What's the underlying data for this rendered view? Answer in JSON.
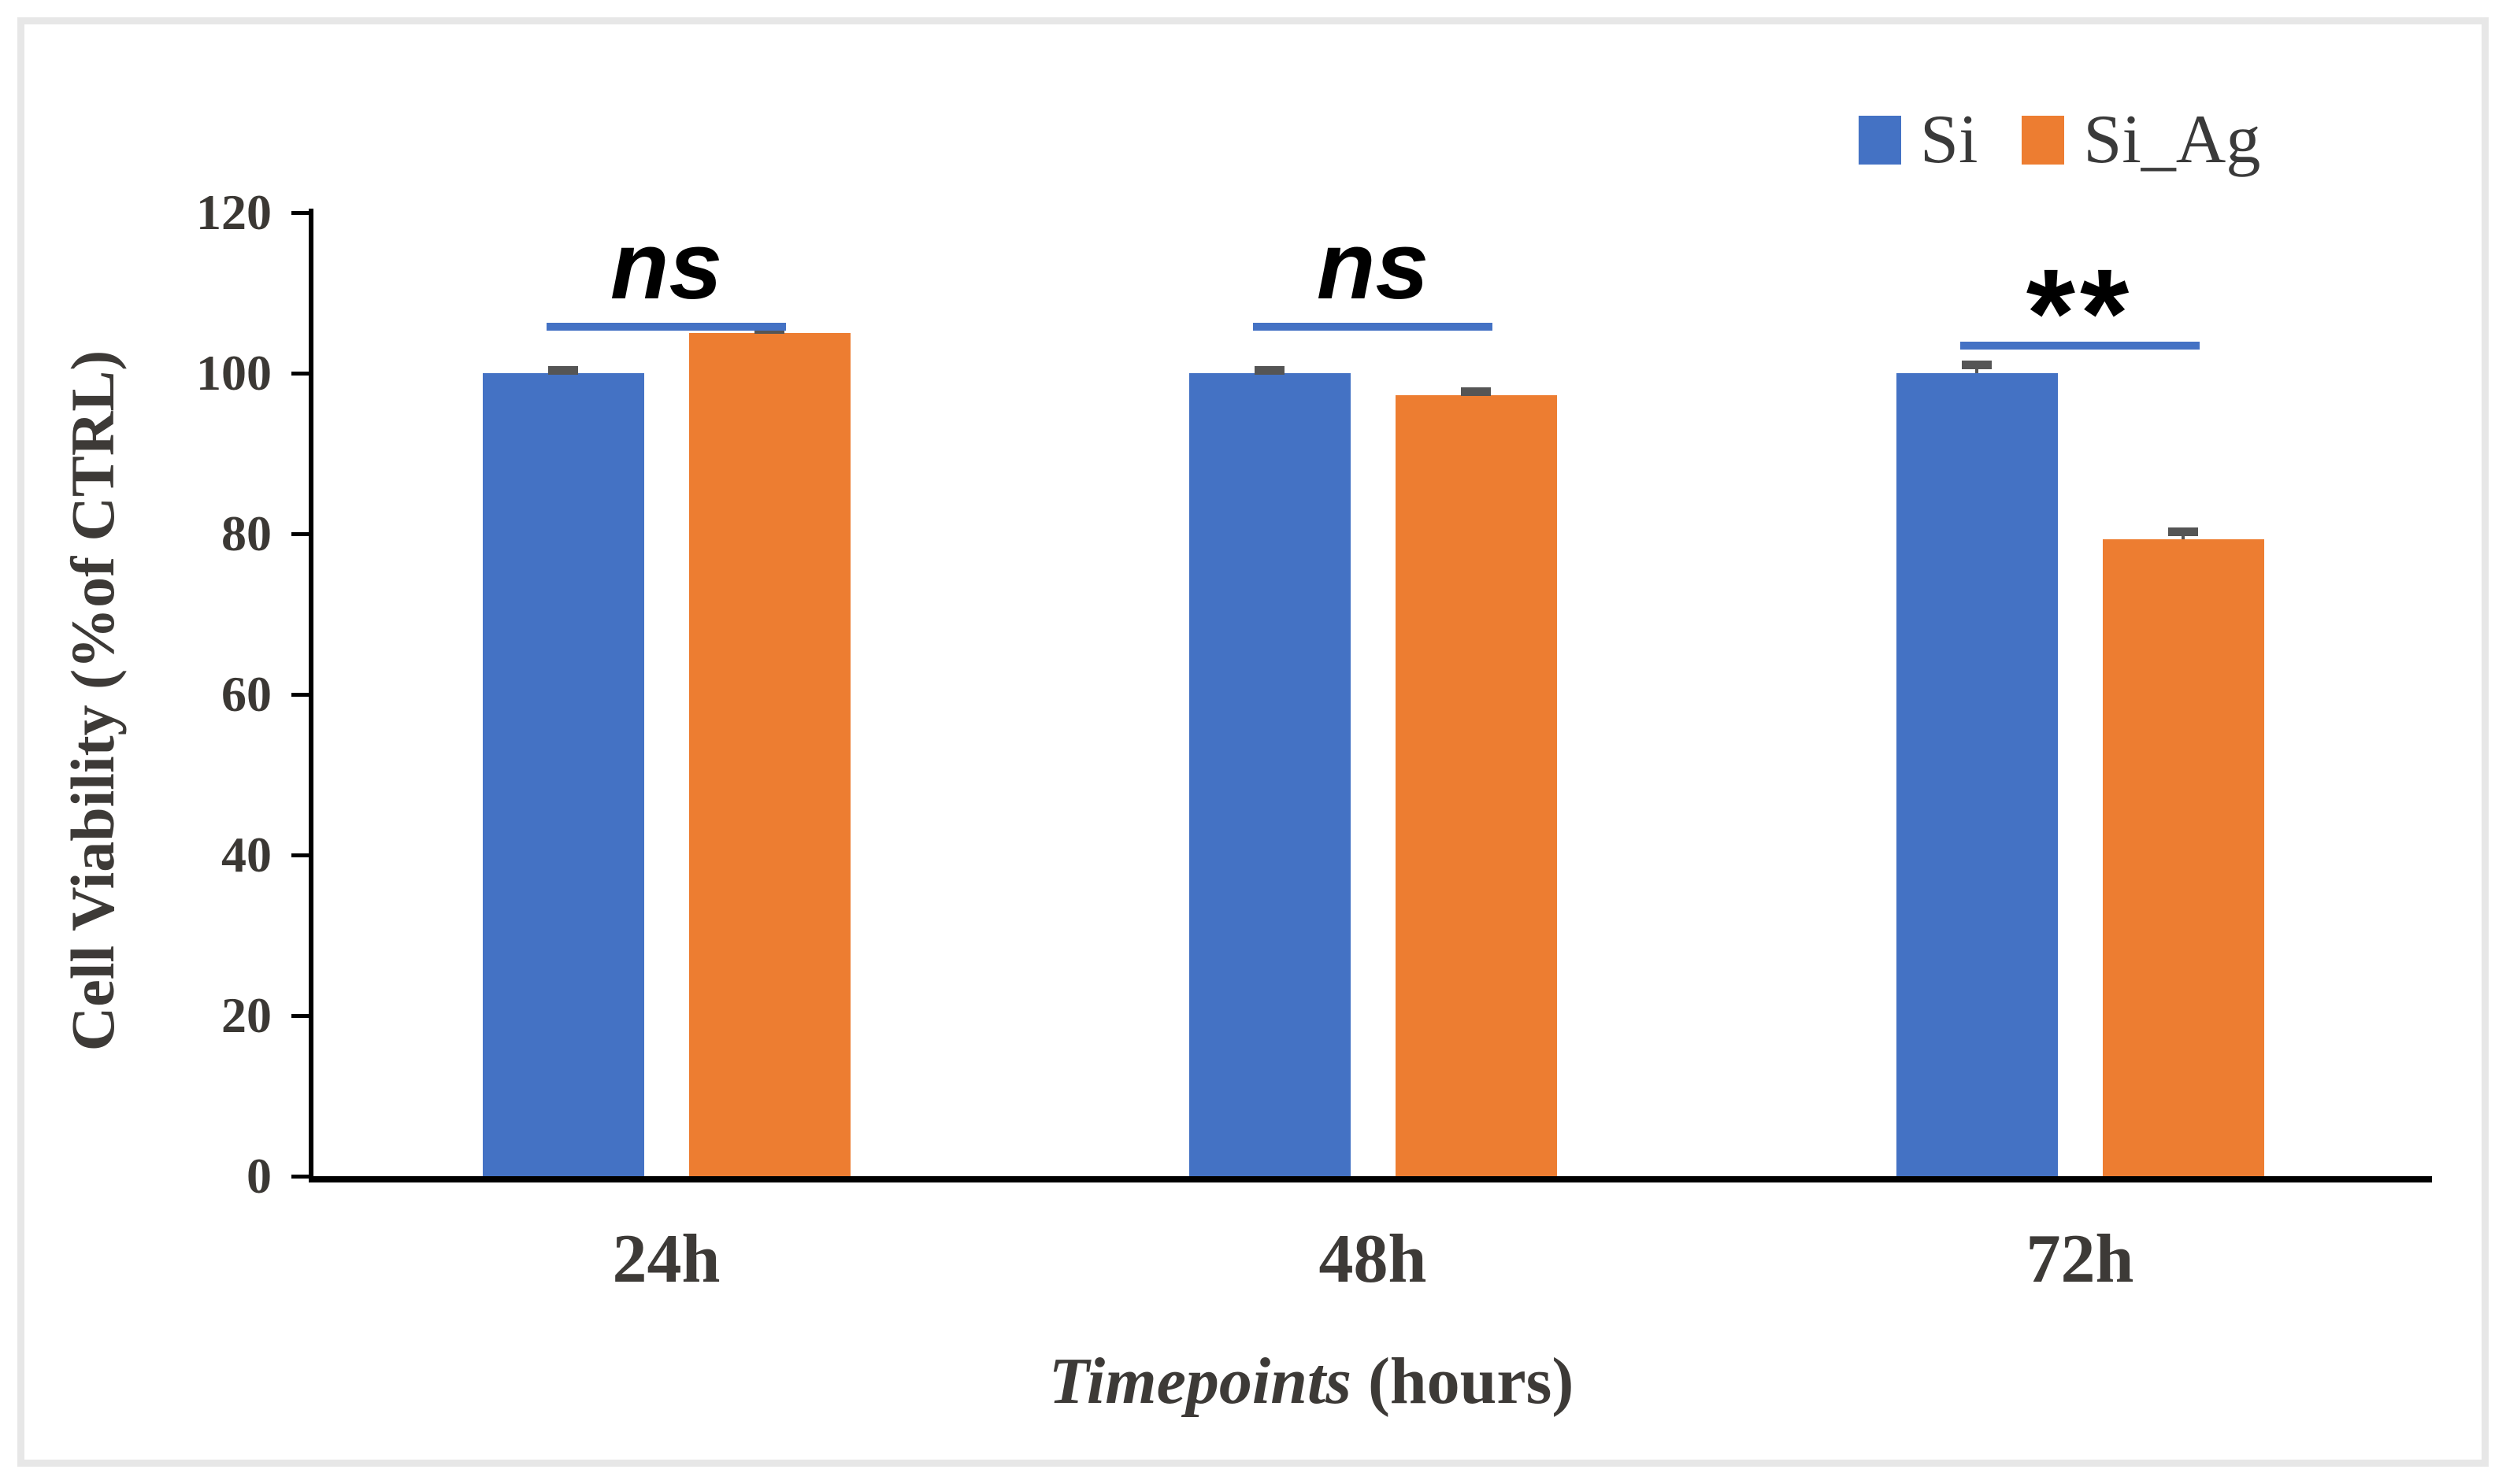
{
  "chart_data": {
    "type": "bar",
    "title": "",
    "categories": [
      "24h",
      "48h",
      "72h"
    ],
    "series": [
      {
        "name": "Si",
        "color": "#4472C4",
        "values": [
          100,
          100,
          100
        ],
        "errors": [
          0.3,
          0.3,
          1.0
        ]
      },
      {
        "name": "Si_Ag",
        "color": "#ED7D31",
        "values": [
          105,
          97.3,
          79.3
        ],
        "errors": [
          0.4,
          0.4,
          0.9
        ]
      }
    ],
    "ylabel": "Cell Viability (%of CTRL)",
    "xlabel": "Timepoints (hours)",
    "xlabel_italic_part": "Timepoints",
    "xlabel_plain_part": "(hours)",
    "ylim": [
      0,
      120
    ],
    "ytick_step": 20,
    "yticks": [
      0,
      20,
      40,
      60,
      80,
      100,
      120
    ],
    "grid": false,
    "legend_position": "top-right",
    "significance": [
      {
        "category": "24h",
        "label": "ns"
      },
      {
        "category": "48h",
        "label": "ns"
      },
      {
        "category": "72h",
        "label": "**"
      }
    ],
    "colors": {
      "sig_line": "#4472C4",
      "error_bar": "#555555",
      "axis": "#000000",
      "text": "#3d3a37",
      "frame": "#e7e7e7"
    }
  }
}
